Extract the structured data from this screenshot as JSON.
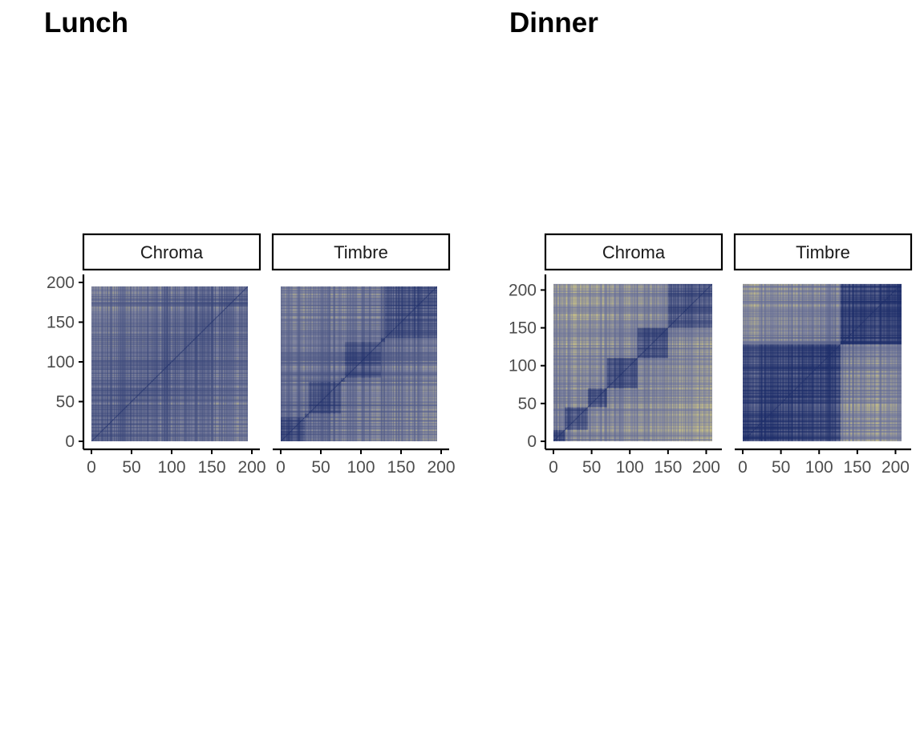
{
  "colors": {
    "low": "#1f2f6b",
    "mid": "#7e83a0",
    "high": "#efe078",
    "axis": "#000000",
    "strip_border": "#000000",
    "tick_text": "#4d4d4d"
  },
  "chart_data": [
    {
      "type": "heatmap",
      "title": "Lunch",
      "colorscale": "cividis",
      "facets": [
        {
          "label": "Chroma",
          "n": 195,
          "xlim": [
            0,
            200
          ],
          "ylim": [
            0,
            200
          ],
          "xticks": [
            "0",
            "50",
            "100",
            "150",
            "200"
          ],
          "yticks": [
            "0",
            "50",
            "100",
            "150",
            "200"
          ],
          "note_segments": [
            [
              0,
              195
            ]
          ],
          "segment_similarity": 0.45,
          "background_level": 0.45
        },
        {
          "label": "Timbre",
          "n": 195,
          "xlim": [
            0,
            200
          ],
          "ylim": [
            0,
            200
          ],
          "xticks": [
            "0",
            "50",
            "100",
            "150",
            "200"
          ],
          "yticks": [
            "0",
            "50",
            "100",
            "150",
            "200"
          ],
          "note_segments": [
            [
              0,
              30
            ],
            [
              30,
              35
            ],
            [
              35,
              75
            ],
            [
              75,
              80
            ],
            [
              80,
              125
            ],
            [
              125,
              130
            ],
            [
              130,
              195
            ]
          ],
          "segment_similarity": 0.3,
          "background_level": 0.3
        }
      ]
    },
    {
      "type": "heatmap",
      "title": "Dinner",
      "colorscale": "cividis",
      "facets": [
        {
          "label": "Chroma",
          "n": 208,
          "xlim": [
            0,
            210
          ],
          "ylim": [
            0,
            210
          ],
          "xticks": [
            "0",
            "50",
            "100",
            "150",
            "200"
          ],
          "yticks": [
            "0",
            "50",
            "100",
            "150",
            "200"
          ],
          "note_segments": [
            [
              0,
              15
            ],
            [
              15,
              45
            ],
            [
              45,
              70
            ],
            [
              70,
              110
            ],
            [
              110,
              150
            ],
            [
              150,
              208
            ]
          ],
          "segment_similarity": 0.3,
          "background_level": 0.5
        },
        {
          "label": "Timbre",
          "n": 208,
          "xlim": [
            0,
            210
          ],
          "ylim": [
            0,
            210
          ],
          "xticks": [
            "0",
            "50",
            "100",
            "150",
            "200"
          ],
          "yticks": [
            "0",
            "50",
            "100",
            "150",
            "200"
          ],
          "note_segments": [
            [
              0,
              128
            ],
            [
              128,
              208
            ]
          ],
          "segment_similarity": 0.15,
          "background_level": 0.45
        }
      ]
    }
  ]
}
